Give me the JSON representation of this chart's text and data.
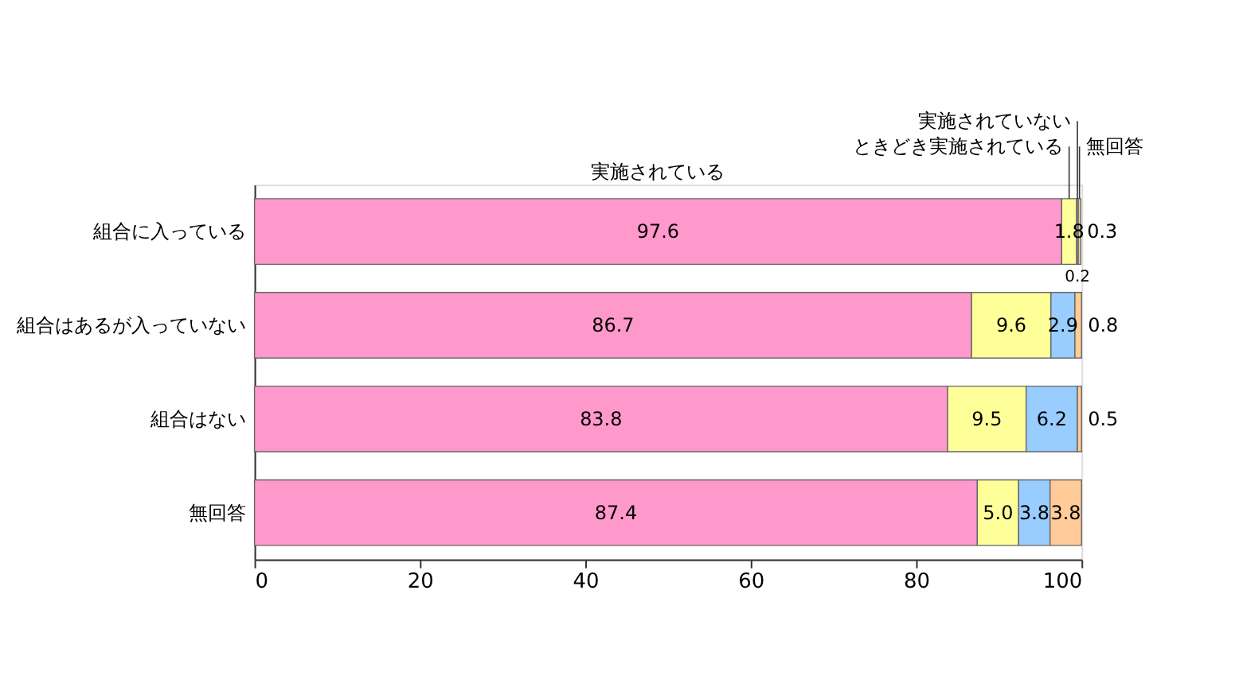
{
  "chart_data": {
    "type": "bar",
    "orientation": "horizontal",
    "stacked": true,
    "legend": false,
    "grid": false,
    "categories": [
      "組合に入っている",
      "組合はあるが入っていない",
      "組合はない",
      "無回答"
    ],
    "series": [
      {
        "name": "実施されている",
        "color": "#ff99cc",
        "values": [
          97.6,
          86.7,
          83.8,
          87.4
        ],
        "value_labels": [
          "97.6",
          "86.7",
          "83.8",
          "87.4"
        ]
      },
      {
        "name": "ときどき実施されている",
        "color": "#ffff99",
        "values": [
          1.8,
          9.6,
          9.5,
          5.0
        ],
        "value_labels": [
          "1.8",
          "9.6",
          "9.5",
          "5.0"
        ]
      },
      {
        "name": "実施されていない",
        "color": "#99ccff",
        "values": [
          0.2,
          2.9,
          6.2,
          3.8
        ],
        "value_labels": [
          "0.2",
          "2.9",
          "6.2",
          "3.8"
        ]
      },
      {
        "name": "無回答",
        "color": "#ffcc99",
        "values": [
          0.3,
          0.8,
          0.5,
          3.8
        ],
        "value_labels": [
          "0.3",
          "0.8",
          "0.5",
          "3.8"
        ]
      }
    ],
    "xlim": [
      0,
      100
    ],
    "xticks": [
      0,
      20,
      40,
      60,
      80,
      100
    ]
  }
}
